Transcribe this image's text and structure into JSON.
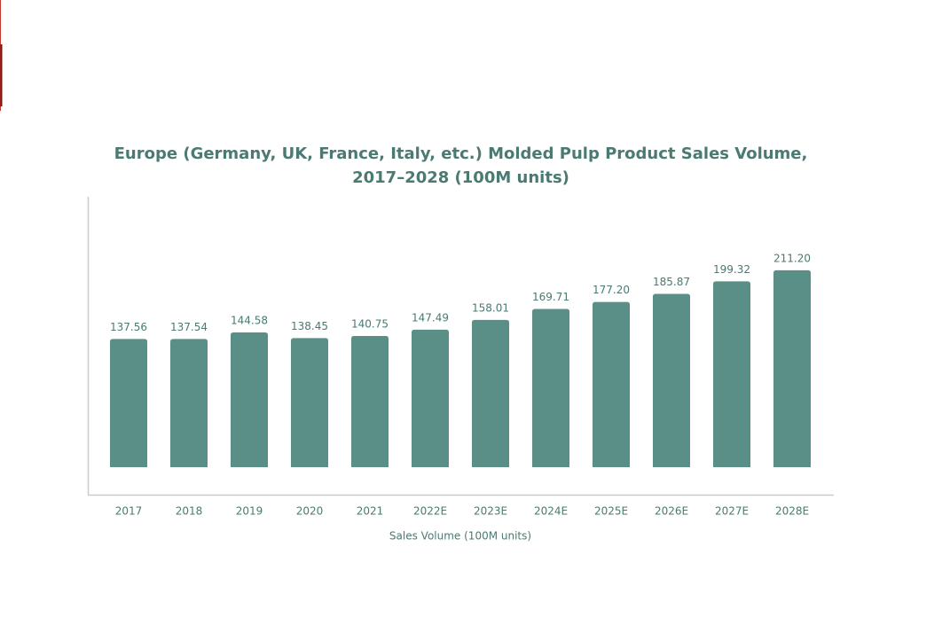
{
  "chart_data": {
    "type": "bar",
    "title": "Europe (Germany, UK, France, Italy, etc.) Molded Pulp Product Sales Volume, 2017–2028 (100M units)",
    "x_label": "Sales Volume (100M units)",
    "categories": [
      "2017",
      "2018",
      "2019",
      "2020",
      "2021",
      "2022E",
      "2023E",
      "2024E",
      "2025E",
      "2026E",
      "2027E",
      "2028E"
    ],
    "values": [
      137.56,
      137.54,
      144.58,
      138.45,
      140.75,
      147.49,
      158.01,
      169.71,
      177.2,
      185.87,
      199.32,
      211.2
    ],
    "value_labels": [
      "137.56",
      "137.54",
      "144.58",
      "138.45",
      "140.75",
      "147.49",
      "158.01",
      "169.71",
      "177.20",
      "185.87",
      "199.32",
      "211.20"
    ],
    "color": "#5a8f88",
    "ylim": [
      0,
      290
    ]
  }
}
